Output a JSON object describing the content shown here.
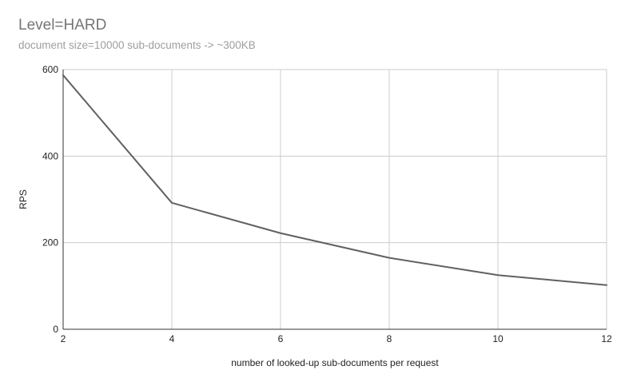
{
  "chart_data": {
    "type": "line",
    "title": "Level=HARD",
    "subtitle": "document size=10000 sub-documents -> ~300KB",
    "xlabel": "number of looked-up sub-documents per request",
    "ylabel": "RPS",
    "x": [
      2,
      4,
      6,
      8,
      10,
      12
    ],
    "series": [
      {
        "values": [
          587,
          292,
          222,
          165,
          125,
          102
        ]
      }
    ],
    "xlim": [
      2,
      12
    ],
    "ylim": [
      0,
      600
    ],
    "xticks": [
      2,
      4,
      6,
      8,
      10,
      12
    ],
    "yticks": [
      0,
      200,
      400,
      600
    ],
    "grid": true,
    "legend": "none",
    "colors": {
      "line": "#616161",
      "grid": "#cccccc",
      "axis": "#333333"
    }
  }
}
